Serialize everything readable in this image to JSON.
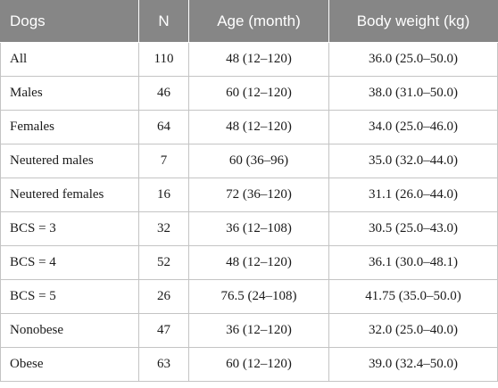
{
  "table": {
    "headers": [
      "Dogs",
      "N",
      "Age (month)",
      "Body weight (kg)"
    ],
    "rows": [
      [
        "All",
        "110",
        "48 (12–120)",
        "36.0 (25.0–50.0)"
      ],
      [
        "Males",
        "46",
        "60 (12–120)",
        "38.0 (31.0–50.0)"
      ],
      [
        "Females",
        "64",
        "48 (12–120)",
        "34.0 (25.0–46.0)"
      ],
      [
        "Neutered males",
        "7",
        "60 (36–96)",
        "35.0 (32.0–44.0)"
      ],
      [
        "Neutered females",
        "16",
        "72 (36–120)",
        "31.1 (26.0–44.0)"
      ],
      [
        "BCS = 3",
        "32",
        "36 (12–108)",
        "30.5 (25.0–43.0)"
      ],
      [
        "BCS = 4",
        "52",
        "48 (12–120)",
        "36.1 (30.0–48.1)"
      ],
      [
        "BCS = 5",
        "26",
        "76.5 (24–108)",
        "41.75 (35.0–50.0)"
      ],
      [
        "Nonobese",
        "47",
        "36 (12–120)",
        "32.0 (25.0–40.0)"
      ],
      [
        "Obese",
        "63",
        "60 (12–120)",
        "39.0 (32.4–50.0)"
      ]
    ]
  },
  "colors": {
    "header_background": "#868686",
    "header_text": "#ffffff",
    "grid_line": "#c4c4c4",
    "body_text": "#1a1a1a"
  }
}
